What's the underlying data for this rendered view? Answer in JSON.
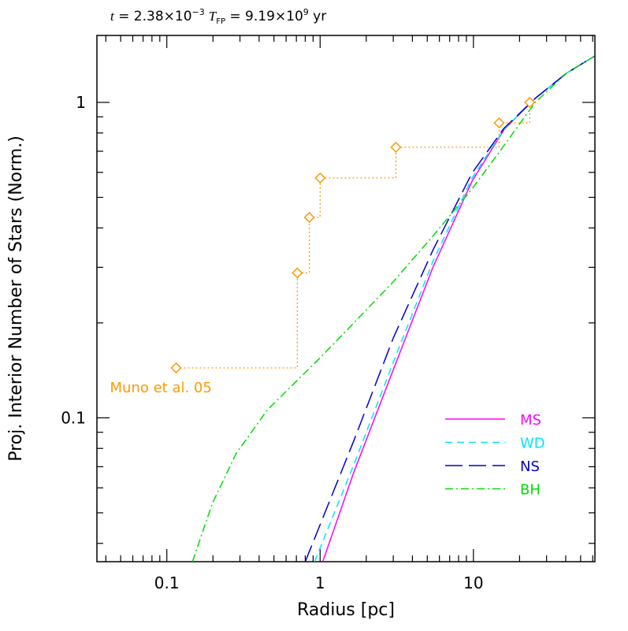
{
  "chart_data": {
    "type": "line",
    "title_parts": [
      "t",
      " = 2.38×10",
      "−3",
      "T",
      "FP",
      " = 9.19×10",
      "9",
      " yr"
    ],
    "xlabel": "Radius [pc]",
    "ylabel": "Proj. Interior Number of Stars (Norm.)",
    "xscale": "log",
    "yscale": "log",
    "xlim": [
      0.035,
      62
    ],
    "ylim": [
      0.035,
      1.63
    ],
    "xticks": [
      0.1,
      1,
      10
    ],
    "yticks": [
      0.1,
      1
    ],
    "xticks_minor": [
      0.04,
      0.05,
      0.06,
      0.07,
      0.08,
      0.09,
      0.2,
      0.3,
      0.4,
      0.5,
      0.6,
      0.7,
      0.8,
      0.9,
      2,
      3,
      4,
      5,
      6,
      7,
      8,
      9,
      20,
      30,
      40,
      50,
      60
    ],
    "yticks_minor": [
      0.04,
      0.05,
      0.06,
      0.07,
      0.08,
      0.09,
      0.2,
      0.3,
      0.4,
      0.5,
      0.6,
      0.7,
      0.8,
      0.9
    ],
    "legend": "lower right",
    "series": [
      {
        "name": "MS",
        "color": "#ff00ff",
        "dash": "solid",
        "x": [
          1.04,
          1.66,
          3.0,
          5.44,
          9.8,
          15.8,
          25.3,
          40.7,
          61.5
        ],
        "values": [
          0.035,
          0.0673,
          0.142,
          0.3,
          0.563,
          0.818,
          1.03,
          1.24,
          1.4
        ]
      },
      {
        "name": "WD",
        "color": "#00e5ff",
        "dash": "dashed",
        "x": [
          0.92,
          1.66,
          3.0,
          5.44,
          9.8,
          15.8,
          25.3,
          40.7,
          61.5
        ],
        "values": [
          0.035,
          0.0711,
          0.15,
          0.313,
          0.576,
          0.82,
          1.03,
          1.24,
          1.4
        ]
      },
      {
        "name": "NS",
        "color": "#0000cc",
        "dash": "longdash",
        "x": [
          0.8,
          1.66,
          3.0,
          5.44,
          9.8,
          15.8,
          25.3,
          40.7,
          61.5
        ],
        "values": [
          0.035,
          0.0847,
          0.179,
          0.34,
          0.597,
          0.827,
          1.03,
          1.24,
          1.4
        ]
      },
      {
        "name": "BH",
        "color": "#00dd00",
        "dash": "dashdot",
        "x": [
          0.147,
          0.198,
          0.282,
          0.453,
          1,
          1.66,
          3.0,
          5.44,
          9.8,
          15.8,
          25.3,
          40.7,
          61.5
        ],
        "values": [
          0.035,
          0.0535,
          0.0768,
          0.106,
          0.155,
          0.2,
          0.27,
          0.377,
          0.532,
          0.729,
          1.0,
          1.24,
          1.4
        ]
      },
      {
        "name": "Muno et al. 05",
        "color": "#ff9900",
        "dash": "dotted",
        "step": "post",
        "marker": "diamond",
        "x": [
          0.115,
          0.71,
          0.85,
          1.0,
          3.12,
          14.7,
          23.3
        ],
        "values": [
          0.144,
          0.288,
          0.432,
          0.576,
          0.721,
          0.861,
          1.0
        ]
      }
    ]
  }
}
